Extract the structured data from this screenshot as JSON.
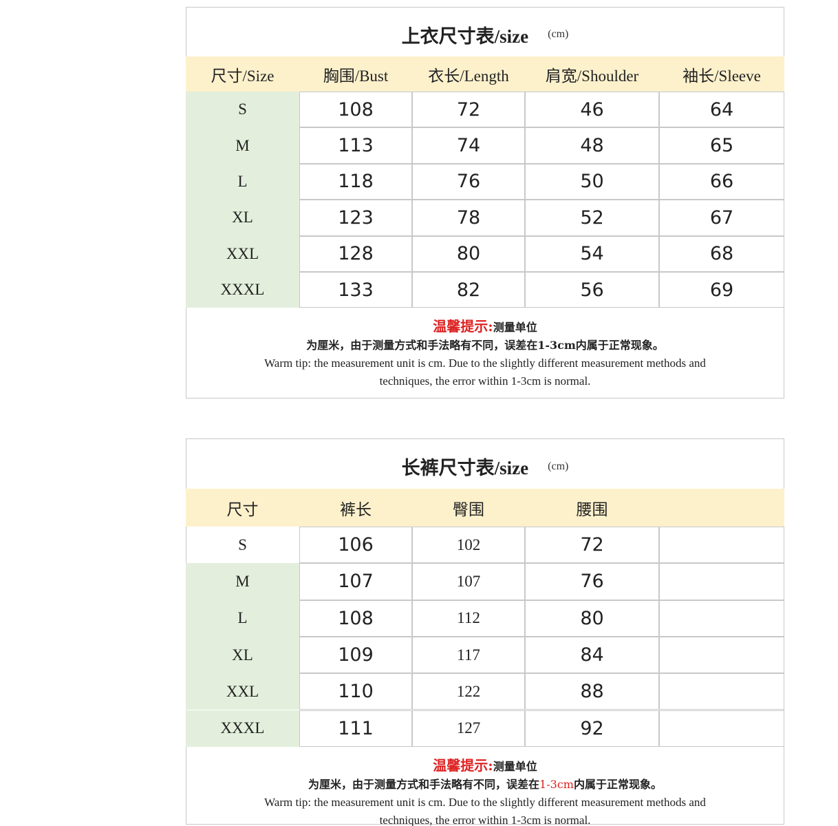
{
  "tables": [
    {
      "title": "上衣尺寸表/size",
      "unit": "(cm)",
      "header": [
        "尺寸/Size",
        "胸围/Bust",
        "衣长/Length",
        "肩宽/Shoulder",
        "袖长/Sleeve"
      ],
      "rows": [
        [
          "S",
          108,
          72,
          46,
          64
        ],
        [
          "M",
          113,
          74,
          48,
          65
        ],
        [
          "L",
          118,
          76,
          50,
          66
        ],
        [
          "XL",
          123,
          78,
          52,
          67
        ],
        [
          "XXL",
          128,
          80,
          54,
          68
        ],
        [
          "XXXL",
          133,
          82,
          56,
          69
        ]
      ],
      "tip": {
        "label": "温馨提示:",
        "line1": "测量单位",
        "line2_before": "为厘米，由于测量方式和手法略有不同，误差在",
        "line2_highlight": "1-3cm",
        "line2_after": "内属于正常现象。",
        "english_1": "Warm tip: the measurement unit is cm. Due to the slightly different measurement methods and",
        "english_2": "techniques, the error within 1-3cm is normal."
      }
    },
    {
      "title": "长裤尺寸表/size",
      "unit": "(cm)",
      "header": [
        "尺寸",
        "裤长",
        "臀围",
        "腰围"
      ],
      "rows": [
        [
          "S",
          106,
          102,
          72
        ],
        [
          "M",
          107,
          107,
          76
        ],
        [
          "L",
          108,
          112,
          80
        ],
        [
          "XL",
          109,
          117,
          84
        ],
        [
          "XXL",
          110,
          122,
          88
        ],
        [
          "XXXL",
          111,
          127,
          92
        ]
      ],
      "tip": {
        "label": "温馨提示:",
        "line1": "测量单位",
        "line2_before": "为厘米，由于测量方式和手法略有不同，误差在",
        "line2_highlight": "1-3cm",
        "line2_after": "内属于正常现象。",
        "english_1": "Warm tip: the measurement unit is cm. Due to the slightly different measurement methods and",
        "english_2": "techniques, the error within 1-3cm is normal."
      }
    }
  ]
}
